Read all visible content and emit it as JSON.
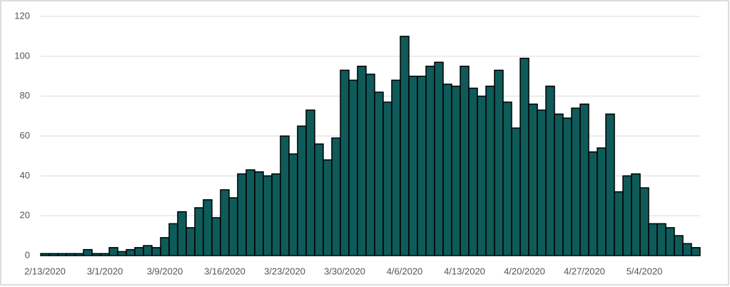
{
  "chart_data": {
    "type": "bar",
    "categories": [
      "2/13/2020",
      null,
      null,
      null,
      null,
      null,
      null,
      "3/1/2020",
      null,
      null,
      null,
      null,
      null,
      null,
      "3/9/2020",
      null,
      null,
      null,
      null,
      null,
      null,
      "3/16/2020",
      null,
      null,
      null,
      null,
      null,
      null,
      "3/23/2020",
      null,
      null,
      null,
      null,
      null,
      null,
      "3/30/2020",
      null,
      null,
      null,
      null,
      null,
      null,
      "4/6/2020",
      null,
      null,
      null,
      null,
      null,
      null,
      "4/13/2020",
      null,
      null,
      null,
      null,
      null,
      null,
      "4/20/2020",
      null,
      null,
      null,
      null,
      null,
      null,
      "4/27/2020",
      null,
      null,
      null,
      null,
      null,
      null,
      "5/4/2020",
      null,
      null,
      null,
      null,
      null,
      null
    ],
    "values": [
      1,
      1,
      1,
      1,
      1,
      3,
      1,
      1,
      4,
      2,
      3,
      4,
      5,
      4,
      9,
      16,
      22,
      14,
      24,
      28,
      19,
      33,
      29,
      41,
      43,
      42,
      40,
      41,
      60,
      51,
      65,
      73,
      56,
      48,
      59,
      93,
      88,
      95,
      91,
      82,
      77,
      88,
      110,
      90,
      90,
      95,
      97,
      86,
      85,
      95,
      84,
      80,
      85,
      93,
      77,
      64,
      99,
      76,
      73,
      85,
      71,
      69,
      74,
      76,
      52,
      54,
      71,
      32,
      40,
      41,
      34,
      16,
      16,
      14,
      10,
      6,
      4
    ],
    "color": "#0e5b5a",
    "ylim": [
      0,
      120
    ],
    "yticks": [
      0,
      20,
      40,
      60,
      80,
      100,
      120
    ],
    "grid": true
  }
}
